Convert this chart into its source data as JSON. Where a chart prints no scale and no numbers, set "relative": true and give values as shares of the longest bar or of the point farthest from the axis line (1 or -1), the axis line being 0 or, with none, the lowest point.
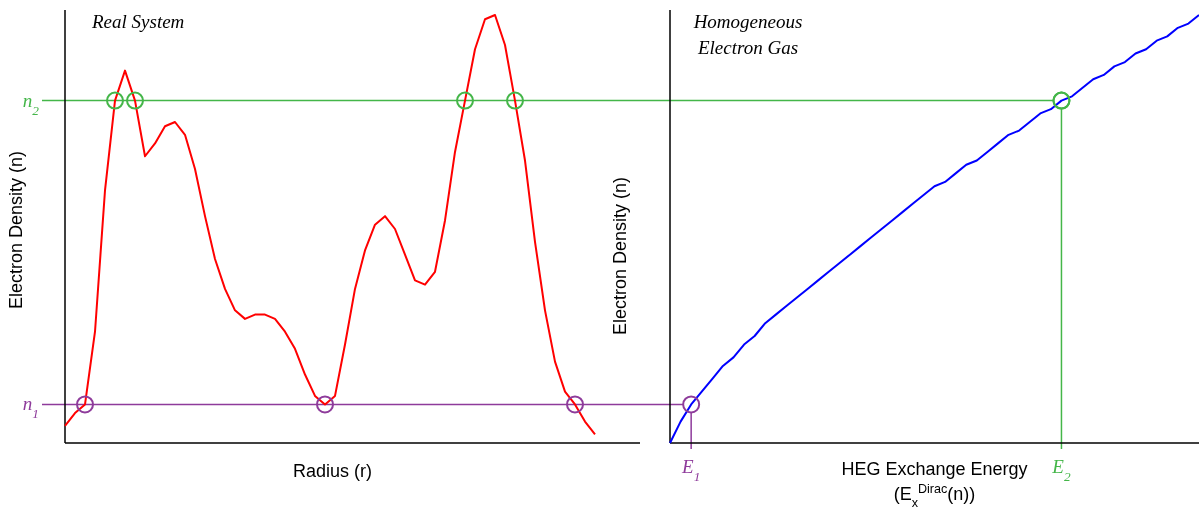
{
  "chart_data": [
    {
      "type": "line",
      "title": "Real System",
      "xlabel": "Radius (r)",
      "ylabel": "Electron Density (n)",
      "relative": true,
      "categories": [
        null,
        null,
        null,
        null,
        null,
        null,
        null,
        null,
        null,
        null,
        null,
        null,
        null,
        null,
        null,
        null,
        null,
        null,
        null,
        null,
        null,
        null,
        null,
        null,
        null,
        null,
        null,
        null,
        null,
        null,
        null,
        null,
        null,
        null,
        null,
        null,
        null,
        null,
        null,
        null,
        null,
        null,
        null,
        null,
        null,
        null,
        null,
        null,
        null,
        null,
        null,
        null,
        null,
        null
      ],
      "series": [
        {
          "color": "#ff0000",
          "values": [
            0.04,
            0.07,
            0.09,
            0.26,
            0.59,
            0.8,
            0.87,
            0.8,
            0.67,
            0.7,
            0.74,
            0.75,
            0.72,
            0.64,
            0.53,
            0.43,
            0.36,
            0.31,
            0.29,
            0.3,
            0.3,
            0.29,
            0.26,
            0.22,
            0.16,
            0.11,
            0.09,
            0.11,
            0.23,
            0.36,
            0.45,
            0.51,
            0.53,
            0.5,
            0.44,
            0.38,
            0.37,
            0.4,
            0.52,
            0.68,
            0.8,
            0.92,
            0.99,
            1.0,
            0.93,
            0.8,
            0.66,
            0.47,
            0.31,
            0.19,
            0.12,
            0.09,
            0.05,
            0.02
          ]
        }
      ],
      "ref_lines": [
        {
          "axis": "y",
          "value": 0.8,
          "color": "#44b649",
          "label": "n$_{2}$"
        },
        {
          "axis": "y",
          "value": 0.09,
          "color": "#8e3b9b",
          "label": "n$_{1}$"
        }
      ]
    },
    {
      "type": "line",
      "title": "Homogeneous\nElectron Gas",
      "xlabel": "HEG Exchange Energy\n(E$_{x}$$^{Dirac}$(n))",
      "ylabel": "Electron Density (n)",
      "relative": true,
      "tick_labels": "x",
      "categories": [
        null,
        null,
        "E$_{1}$",
        null,
        null,
        null,
        null,
        null,
        null,
        null,
        null,
        null,
        null,
        null,
        null,
        null,
        null,
        null,
        null,
        null,
        null,
        null,
        null,
        null,
        null,
        null,
        null,
        null,
        null,
        null,
        null,
        null,
        null,
        null,
        null,
        null,
        null,
        "E$_{2}$",
        null,
        null,
        null,
        null,
        null,
        null,
        null,
        null,
        null,
        null,
        null,
        null,
        null
      ],
      "series": [
        {
          "color": "#0000ff",
          "values": [
            0,
            0.05,
            0.09,
            0.12,
            0.15,
            0.18,
            0.2,
            0.23,
            0.25,
            0.28,
            0.3,
            0.32,
            0.34,
            0.36,
            0.38,
            0.4,
            0.42,
            0.44,
            0.46,
            0.48,
            0.5,
            0.52,
            0.54,
            0.56,
            0.58,
            0.6,
            0.61,
            0.63,
            0.65,
            0.66,
            0.68,
            0.7,
            0.72,
            0.73,
            0.75,
            0.77,
            0.78,
            0.8,
            0.81,
            0.83,
            0.85,
            0.86,
            0.88,
            0.89,
            0.91,
            0.92,
            0.94,
            0.95,
            0.97,
            0.98,
            1.0
          ]
        }
      ],
      "ref_lines": [
        {
          "axis": "y",
          "value": 0.8,
          "color": "#44b649"
        }
      ]
    }
  ]
}
